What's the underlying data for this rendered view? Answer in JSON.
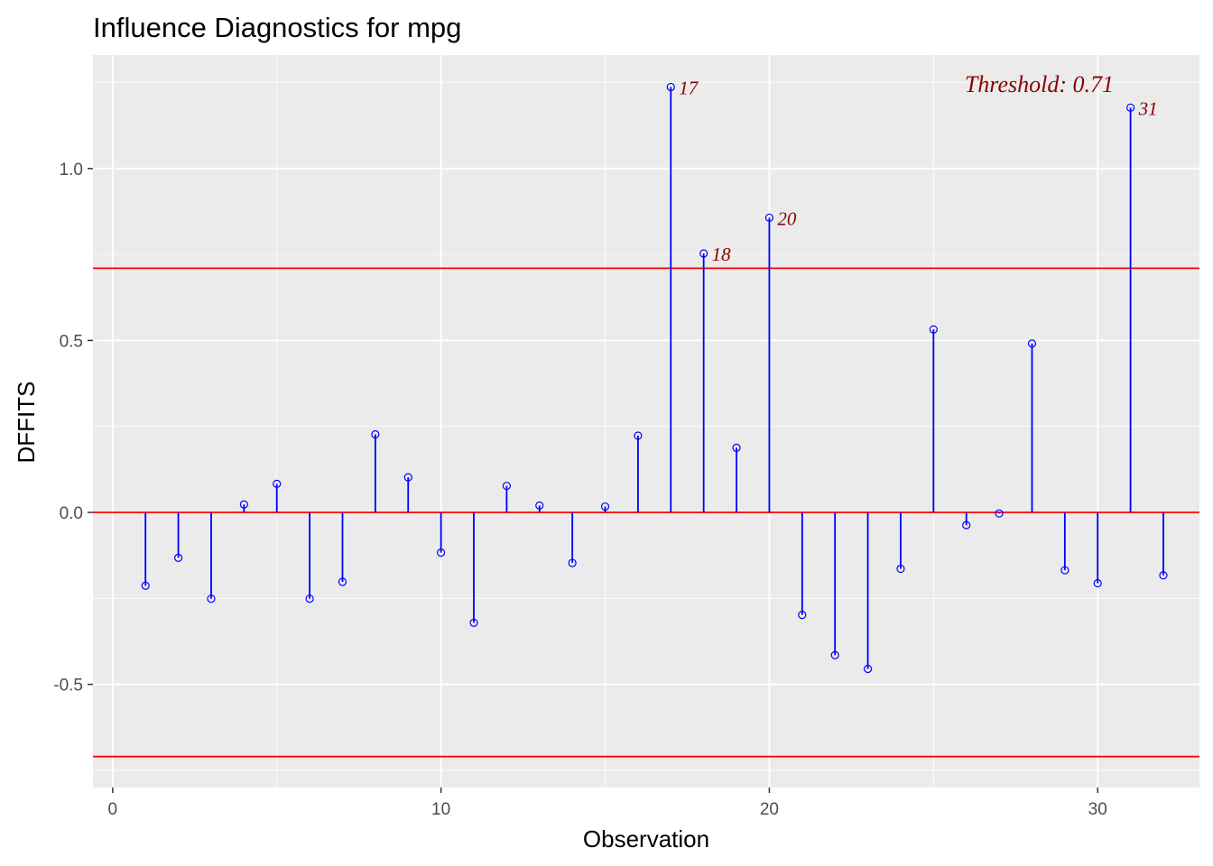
{
  "chart_data": {
    "type": "scatter",
    "subtype": "lollipop",
    "title": "Influence Diagnostics for mpg",
    "xlabel": "Observation",
    "ylabel": "DFFITS",
    "xlim": [
      -0.6,
      33.1
    ],
    "ylim": [
      -0.8,
      1.33
    ],
    "x_ticks": [
      0,
      10,
      20,
      30
    ],
    "x_tick_labels": [
      "0",
      "10",
      "20",
      "30"
    ],
    "y_ticks": [
      -0.5,
      0.0,
      0.5,
      1.0
    ],
    "y_tick_labels": [
      "-0.5",
      "0.0",
      "0.5",
      "1.0"
    ],
    "grid": true,
    "threshold": 0.71,
    "threshold_label": "Threshold: 0.71",
    "hlines": [
      0.71,
      0.0,
      -0.71
    ],
    "x": [
      1,
      2,
      3,
      4,
      5,
      6,
      7,
      8,
      9,
      10,
      11,
      12,
      13,
      14,
      15,
      16,
      17,
      18,
      19,
      20,
      21,
      22,
      23,
      24,
      25,
      26,
      27,
      28,
      29,
      30,
      31,
      32
    ],
    "values": [
      -0.213,
      -0.132,
      -0.251,
      0.023,
      0.083,
      -0.251,
      -0.202,
      0.227,
      0.102,
      -0.117,
      -0.321,
      0.077,
      0.02,
      -0.147,
      0.017,
      0.223,
      1.237,
      0.753,
      0.188,
      0.857,
      -0.298,
      -0.415,
      -0.455,
      -0.164,
      0.532,
      -0.037,
      -0.003,
      0.491,
      -0.168,
      -0.206,
      1.177,
      -0.183
    ],
    "labeled_points": [
      {
        "x": 17,
        "y": 1.237,
        "label": "17"
      },
      {
        "x": 18,
        "y": 0.753,
        "label": "18"
      },
      {
        "x": 20,
        "y": 0.857,
        "label": "20"
      },
      {
        "x": 31,
        "y": 1.177,
        "label": "31"
      }
    ],
    "colors": {
      "panel": "#ebebeb",
      "grid": "#ffffff",
      "stem": "#0000ff",
      "point": "#0000ff",
      "hline": "#ff0000",
      "label": "#8b0000",
      "tick": "#4d4d4d",
      "tick_mark": "#333333"
    }
  }
}
